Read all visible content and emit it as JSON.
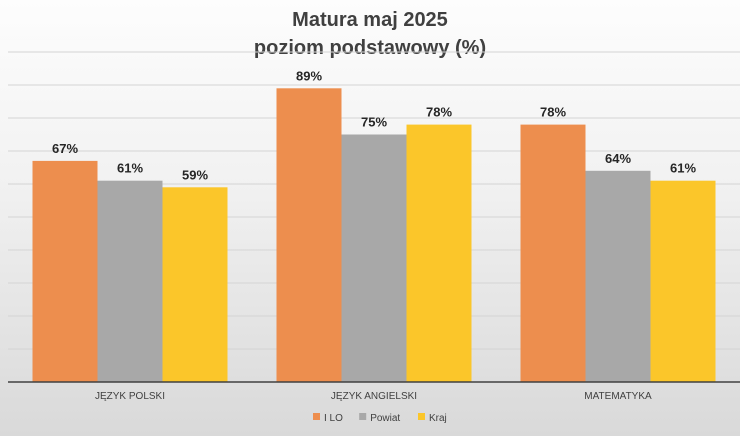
{
  "chart_data": {
    "type": "bar",
    "title": [
      "Matura maj 2025",
      "poziom podstawowy (%)"
    ],
    "categories": [
      "JĘZYK POLSKI",
      "JĘZYK ANGIELSKI",
      "MATEMATYKA"
    ],
    "series": [
      {
        "name": "I LO",
        "color": "#ED8E4E",
        "values": [
          67,
          89,
          78
        ],
        "labels": [
          "67%",
          "89%",
          "78%"
        ]
      },
      {
        "name": "Powiat",
        "color": "#A8A8A8",
        "values": [
          61,
          75,
          64
        ],
        "labels": [
          "61%",
          "75%",
          "64%"
        ]
      },
      {
        "name": "Kraj",
        "color": "#FBC62A",
        "values": [
          59,
          78,
          61
        ],
        "labels": [
          "59%",
          "78%",
          "61%"
        ]
      }
    ],
    "ylim": [
      0,
      100
    ],
    "grid": true,
    "legend_position": "bottom"
  }
}
